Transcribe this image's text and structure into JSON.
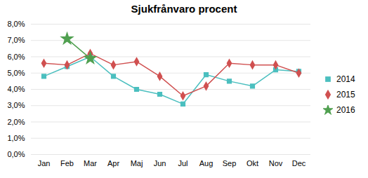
{
  "chart_data": {
    "type": "line",
    "title": "Sjukfrånvaro procent",
    "categories": [
      "Jan",
      "Feb",
      "Mar",
      "Apr",
      "Maj",
      "Jun",
      "Jul",
      "Aug",
      "Sep",
      "Okt",
      "Nov",
      "Dec"
    ],
    "series": [
      {
        "name": "2014",
        "color": "#4BBFBF",
        "marker": "square",
        "values": [
          0.048,
          0.054,
          0.06,
          0.048,
          0.04,
          0.037,
          0.031,
          0.049,
          0.045,
          0.042,
          0.052,
          0.051
        ]
      },
      {
        "name": "2015",
        "color": "#D05050",
        "marker": "diamond",
        "values": [
          0.056,
          0.055,
          0.062,
          0.055,
          0.057,
          0.048,
          0.036,
          0.042,
          0.056,
          0.055,
          0.055,
          0.05
        ]
      },
      {
        "name": "2016",
        "color": "#50A050",
        "marker": "star",
        "values": [
          null,
          0.071,
          0.059,
          null,
          null,
          null,
          null,
          null,
          null,
          null,
          null,
          null
        ]
      }
    ],
    "ylim": [
      0.0,
      0.08
    ],
    "yticks": [
      {
        "value": 0.0,
        "label": "0,0%"
      },
      {
        "value": 0.01,
        "label": "1,0%"
      },
      {
        "value": 0.02,
        "label": "2,0%"
      },
      {
        "value": 0.03,
        "label": "3,0%"
      },
      {
        "value": 0.04,
        "label": "4,0%"
      },
      {
        "value": 0.05,
        "label": "5,0%"
      },
      {
        "value": 0.06,
        "label": "6,0%"
      },
      {
        "value": 0.07,
        "label": "7,0%"
      },
      {
        "value": 0.08,
        "label": "8,0%"
      }
    ],
    "grid": true,
    "legend": "right"
  }
}
